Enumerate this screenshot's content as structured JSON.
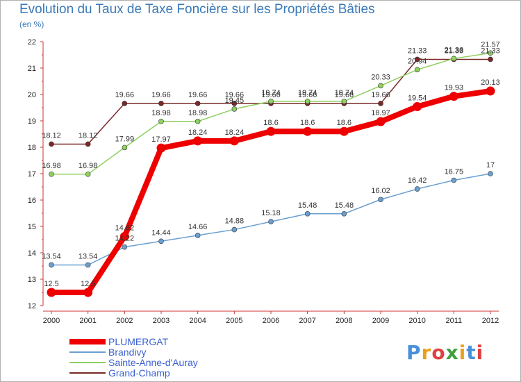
{
  "title": "Evolution du Taux de Taxe Foncière sur les Propriétés Bâties",
  "subtitle": "(en %)",
  "logo": {
    "letters": [
      "P",
      "r",
      "o",
      "x",
      "i",
      "t",
      "i"
    ],
    "colors": [
      "#4a90d9",
      "#e8a020",
      "#e04040",
      "#40a040",
      "#e8a020",
      "#4a90d9",
      "#e04040"
    ]
  },
  "chart_data": {
    "type": "line",
    "title": "Evolution du Taux de Taxe Foncière sur les Propriétés Bâties",
    "ylabel": "(en %)",
    "xlabel": "",
    "x": [
      "2000",
      "2001",
      "2002",
      "2003",
      "2004",
      "2005",
      "2006",
      "2007",
      "2008",
      "2009",
      "2010",
      "2011",
      "2012"
    ],
    "ylim": [
      12,
      22
    ],
    "yticks": [
      "12",
      "13",
      "14",
      "15",
      "16",
      "17",
      "18",
      "19",
      "20",
      "21",
      "22"
    ],
    "series": [
      {
        "name": "PLUMERGAT",
        "color": "#ee0000",
        "values": [
          12.5,
          12.5,
          14.62,
          17.97,
          18.24,
          18.24,
          18.6,
          18.6,
          18.6,
          18.97,
          19.54,
          19.93,
          20.13
        ],
        "labels": [
          "12.5",
          "12.5",
          "14.62",
          "17.97",
          "18.24",
          "18.24",
          "18.6",
          "18.6",
          "18.6",
          "18.97",
          "19.54",
          "19.93",
          "20.13"
        ]
      },
      {
        "name": "Brandivy",
        "color": "#6a9fd0",
        "values": [
          13.54,
          13.54,
          14.22,
          14.44,
          14.66,
          14.88,
          15.18,
          15.48,
          15.48,
          16.02,
          16.42,
          16.75,
          17
        ],
        "labels": [
          "13.54",
          "13.54",
          "14.22",
          "14.44",
          "14.66",
          "14.88",
          "15.18",
          "15.48",
          "15.48",
          "16.02",
          "16.42",
          "16.75",
          "17"
        ]
      },
      {
        "name": "Sainte-Anne-d'Auray",
        "color": "#8fd060",
        "values": [
          16.98,
          16.98,
          17.99,
          18.98,
          18.98,
          19.45,
          19.74,
          19.74,
          19.74,
          20.33,
          20.94,
          21.36,
          21.57
        ],
        "labels": [
          "16.98",
          "16.98",
          "17.99",
          "18.98",
          "18.98",
          "19.45",
          "19.74",
          "19.74",
          "19.74",
          "20.33",
          "20.94",
          "21.36",
          "21.57"
        ]
      },
      {
        "name": "Grand-Champ",
        "color": "#7a2828",
        "values": [
          18.12,
          18.12,
          19.66,
          19.66,
          19.66,
          19.66,
          19.66,
          19.66,
          19.66,
          19.66,
          21.33,
          21.33,
          21.33
        ],
        "labels": [
          "18.12",
          "18.12",
          "19.66",
          "19.66",
          "19.66",
          "19.66",
          "19.66",
          "19.66",
          "19.66",
          "19.66",
          "21.33",
          "21.33",
          "21.33"
        ]
      }
    ],
    "legend_position": "bottom-left",
    "grid": false
  }
}
